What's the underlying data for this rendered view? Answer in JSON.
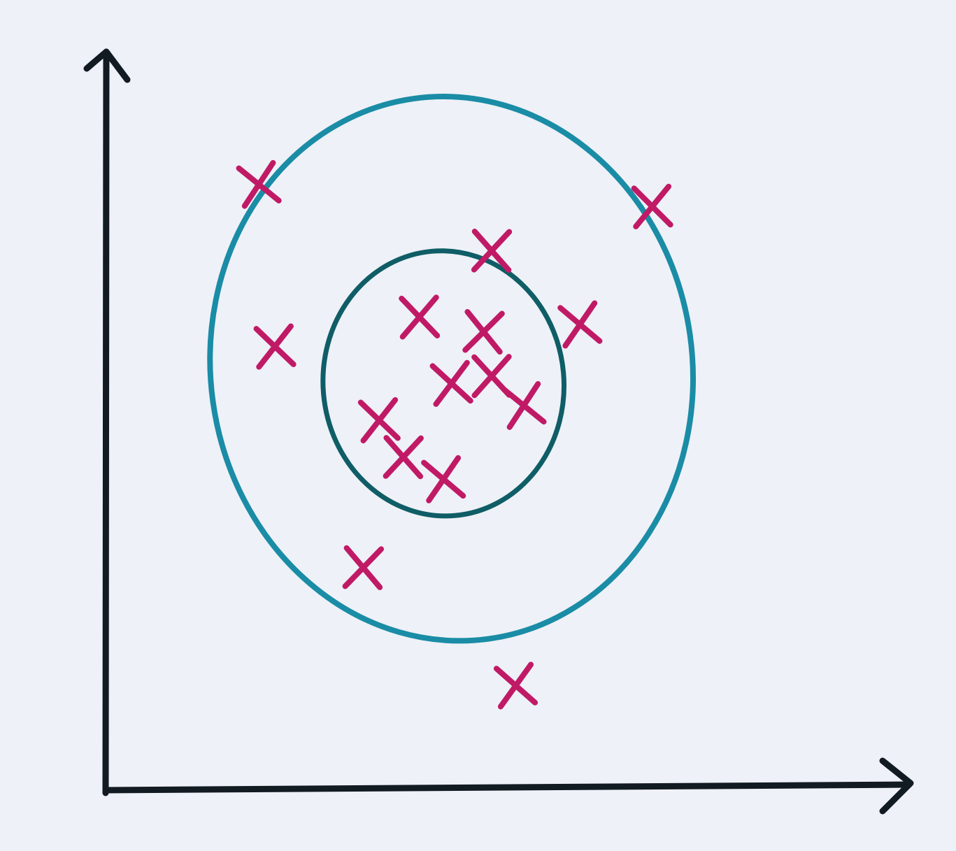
{
  "colors": {
    "paper": "#eef1f7",
    "axes": "#121a22",
    "outer_contour": "#1a8ca6",
    "inner_contour": "#0f5d66",
    "points": "#c01a66"
  },
  "chart_data": {
    "type": "scatter",
    "title": "",
    "xlabel": "",
    "ylabel": "",
    "marker": "x",
    "grid": false,
    "xlim": [
      0,
      100
    ],
    "ylim": [
      0,
      100
    ],
    "points": [
      {
        "x": 19,
        "y": 82,
        "region": "outside"
      },
      {
        "x": 21,
        "y": 60,
        "region": "outer"
      },
      {
        "x": 48,
        "y": 73,
        "region": "outer"
      },
      {
        "x": 59,
        "y": 63,
        "region": "outer"
      },
      {
        "x": 68,
        "y": 79,
        "region": "outer"
      },
      {
        "x": 32,
        "y": 30,
        "region": "outer"
      },
      {
        "x": 51,
        "y": 14,
        "region": "outside"
      },
      {
        "x": 39,
        "y": 64,
        "region": "inner"
      },
      {
        "x": 47,
        "y": 62,
        "region": "inner"
      },
      {
        "x": 43,
        "y": 55,
        "region": "inner"
      },
      {
        "x": 48,
        "y": 56,
        "region": "inner"
      },
      {
        "x": 52,
        "y": 52,
        "region": "inner"
      },
      {
        "x": 34,
        "y": 50,
        "region": "inner"
      },
      {
        "x": 37,
        "y": 45,
        "region": "inner"
      },
      {
        "x": 42,
        "y": 42,
        "region": "inner"
      }
    ],
    "contours": [
      {
        "name": "outer",
        "center": [
          43,
          57
        ],
        "rx": 30,
        "ry": 37,
        "rotation": -8
      },
      {
        "name": "inner",
        "center": [
          42,
          55
        ],
        "rx": 15,
        "ry": 18,
        "rotation": -5
      }
    ]
  }
}
